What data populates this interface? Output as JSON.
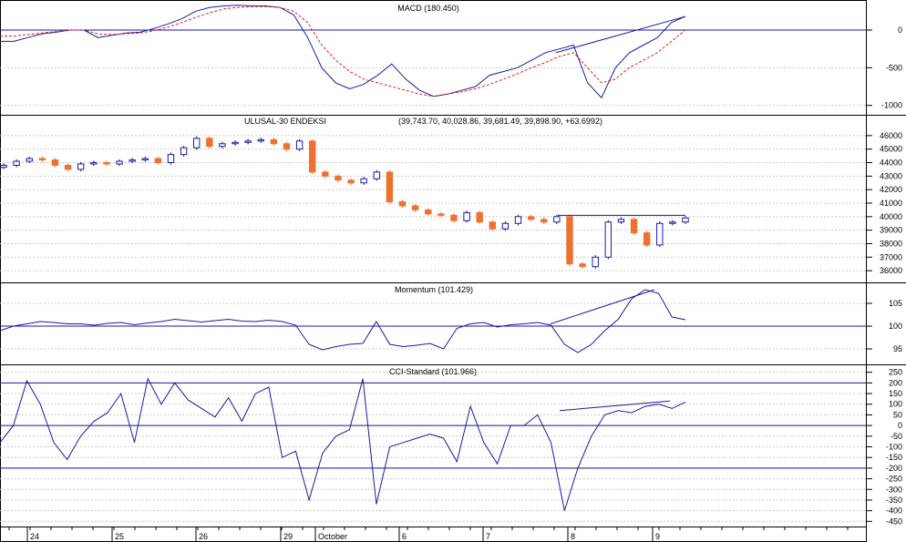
{
  "colors": {
    "line": "#1a1aa0",
    "signal": "#e02020",
    "bull_candle": "#1a1aa0",
    "bear_candle": "#f07030",
    "reference_line": "#1a1aa0",
    "grid": "#c8c8c8"
  },
  "x_axis": {
    "labels": [
      "24",
      "25",
      "26",
      "29",
      "October",
      "6",
      "7",
      "8",
      "9"
    ]
  },
  "chart_data": [
    {
      "type": "line",
      "panel": "macd",
      "title": "MACD (180.450)",
      "yticks": [
        "0",
        "-500",
        "-1000"
      ],
      "ylim": [
        -1100,
        350
      ],
      "reference_lines": [
        0
      ],
      "grid": true,
      "series": [
        {
          "role": "macd",
          "values": [
            -150,
            -150,
            -100,
            -50,
            -30,
            0,
            0,
            -100,
            -70,
            -40,
            -30,
            20,
            80,
            150,
            250,
            300,
            320,
            330,
            320,
            320,
            300,
            200,
            -100,
            -500,
            -700,
            -780,
            -720,
            -600,
            -450,
            -650,
            -800,
            -880,
            -850,
            -800,
            -750,
            -600,
            -550,
            -500,
            -400,
            -300,
            -250,
            -200,
            -700,
            -900,
            -500,
            -300,
            -200,
            -100,
            100,
            180
          ]
        },
        {
          "role": "signal",
          "values": [
            -80,
            -80,
            -60,
            -40,
            -20,
            0,
            0,
            -50,
            -60,
            -50,
            -40,
            -10,
            40,
            100,
            170,
            230,
            280,
            300,
            310,
            310,
            300,
            250,
            100,
            -200,
            -400,
            -550,
            -650,
            -700,
            -750,
            -800,
            -850,
            -880,
            -850,
            -820,
            -780,
            -720,
            -650,
            -580,
            -500,
            -430,
            -350,
            -300,
            -500,
            -700,
            -650,
            -500,
            -400,
            -300,
            -150,
            0
          ]
        },
        {
          "role": "trend",
          "values": [
            -300,
            180
          ]
        }
      ]
    },
    {
      "type": "candlestick",
      "panel": "price",
      "title": "ULUSAL-30 ENDEKSI",
      "ohlc_readout": "(39,743.70, 40,028.86, 39,681.49, 39,898.90, +63.6992)",
      "yticks": [
        "46000",
        "45000",
        "44000",
        "43000",
        "42000",
        "41000",
        "40000",
        "39000",
        "38000",
        "37000",
        "36000"
      ],
      "ylim": [
        35200,
        46800
      ],
      "resistance": 40100,
      "grid": true,
      "closes": [
        43800,
        44100,
        44300,
        44200,
        43800,
        43500,
        43900,
        44000,
        43900,
        44100,
        44200,
        44300,
        44000,
        44600,
        45100,
        45800,
        45200,
        45400,
        45500,
        45600,
        45700,
        45400,
        45000,
        45600,
        43300,
        43000,
        42700,
        42500,
        42800,
        43300,
        41100,
        40800,
        40500,
        40200,
        40100,
        39700,
        40300,
        39600,
        39100,
        39500,
        40000,
        39800,
        39600,
        40000,
        36500,
        36300,
        37000,
        39600,
        39800,
        38800,
        37900,
        39500,
        39600,
        39900
      ]
    },
    {
      "type": "line",
      "panel": "momentum",
      "title": "Momentum (101.429)",
      "yticks": [
        "105",
        "100",
        "95"
      ],
      "ylim": [
        92,
        109
      ],
      "reference_lines": [
        100
      ],
      "grid": true,
      "series": [
        {
          "role": "momentum",
          "values": [
            99,
            100,
            100.5,
            101,
            100.8,
            100.5,
            100.5,
            100.2,
            100.6,
            100.8,
            100.3,
            100.7,
            101,
            101.5,
            101.2,
            100.9,
            101.2,
            101.5,
            101.1,
            101,
            101.3,
            101,
            100.2,
            96,
            94.8,
            95.5,
            96,
            96.2,
            101,
            96,
            95.5,
            95.8,
            96.2,
            95,
            99.5,
            100.5,
            100.8,
            99.8,
            100.3,
            100.5,
            100.8,
            100.2,
            96,
            94.2,
            96,
            99,
            101.5,
            106,
            108,
            107.2,
            102,
            101.4
          ]
        },
        {
          "role": "trend",
          "values": [
            100.5,
            108
          ]
        }
      ]
    },
    {
      "type": "line",
      "panel": "cci",
      "title": "CCI-Standard (101.966)",
      "yticks": [
        "250",
        "200",
        "150",
        "100",
        "50",
        "0",
        "-50",
        "-100",
        "-150",
        "-200",
        "-250",
        "-300",
        "-350",
        "-400",
        "-450"
      ],
      "ylim": [
        -470,
        270
      ],
      "reference_lines": [
        200,
        0,
        -200
      ],
      "grid": true,
      "series": [
        {
          "role": "cci",
          "values": [
            -80,
            0,
            210,
            100,
            -80,
            -160,
            -50,
            20,
            60,
            150,
            -80,
            220,
            100,
            200,
            120,
            80,
            40,
            130,
            20,
            150,
            180,
            -150,
            -120,
            -350,
            -130,
            -50,
            -20,
            220,
            -370,
            -100,
            -80,
            -60,
            -40,
            -60,
            -170,
            90,
            -80,
            -180,
            0,
            0,
            50,
            -80,
            -400,
            -200,
            -50,
            50,
            70,
            60,
            90,
            100,
            80,
            110
          ]
        },
        {
          "role": "trend",
          "values": [
            70,
            115
          ]
        }
      ]
    }
  ]
}
